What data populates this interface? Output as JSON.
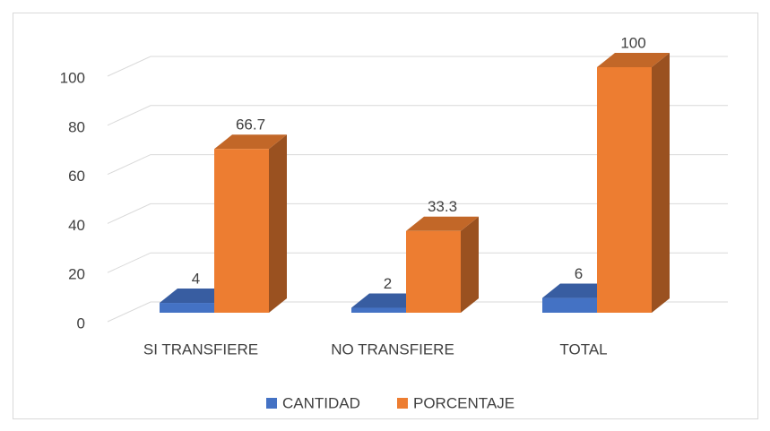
{
  "chart_data": {
    "type": "bar3d",
    "categories": [
      "SI TRANSFIERE",
      "NO TRANSFIERE",
      "TOTAL"
    ],
    "series": [
      {
        "name": "CANTIDAD",
        "color": "#4472c4",
        "values": [
          4,
          2,
          6
        ]
      },
      {
        "name": "PORCENTAJE",
        "color": "#ed7d31",
        "values": [
          66.7,
          33.3,
          100
        ]
      }
    ],
    "ylim": [
      0,
      100
    ],
    "yticks": [
      0,
      20,
      40,
      60,
      80,
      100
    ],
    "grid": true,
    "legend": "bottom"
  }
}
